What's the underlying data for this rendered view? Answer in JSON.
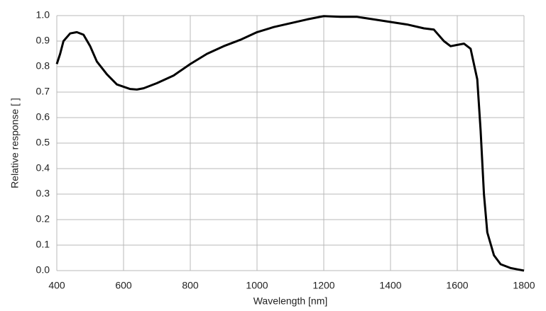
{
  "chart_data": {
    "type": "line",
    "x_label": "Wavelength [nm]",
    "y_label": "Relative response [ ]",
    "x": [
      400,
      410,
      420,
      440,
      460,
      480,
      500,
      520,
      550,
      580,
      620,
      640,
      660,
      700,
      750,
      800,
      850,
      900,
      950,
      1000,
      1050,
      1100,
      1150,
      1200,
      1250,
      1300,
      1350,
      1400,
      1450,
      1500,
      1530,
      1560,
      1580,
      1600,
      1620,
      1640,
      1660,
      1670,
      1680,
      1690,
      1710,
      1730,
      1760,
      1780,
      1800
    ],
    "series": [
      {
        "name": "Relative response",
        "color": "#000000",
        "values": [
          0.81,
          0.85,
          0.9,
          0.93,
          0.935,
          0.925,
          0.88,
          0.82,
          0.77,
          0.73,
          0.712,
          0.71,
          0.715,
          0.735,
          0.765,
          0.81,
          0.85,
          0.88,
          0.905,
          0.935,
          0.955,
          0.97,
          0.985,
          0.998,
          0.995,
          0.995,
          0.985,
          0.975,
          0.965,
          0.95,
          0.945,
          0.9,
          0.88,
          0.885,
          0.89,
          0.87,
          0.75,
          0.55,
          0.3,
          0.15,
          0.06,
          0.025,
          0.01,
          0.005,
          0
        ]
      }
    ],
    "xlim": [
      400,
      1800
    ],
    "xticks": [
      400,
      600,
      800,
      1000,
      1200,
      1400,
      1600,
      1800
    ],
    "ylim": [
      0,
      1
    ],
    "yticks": [
      {
        "value": 0,
        "label": "0.0"
      },
      0.1,
      0.2,
      0.3,
      0.4,
      0.5,
      0.6,
      0.7,
      0.8,
      0.9,
      {
        "value": 1,
        "label": "1.0"
      }
    ],
    "grid": true
  }
}
